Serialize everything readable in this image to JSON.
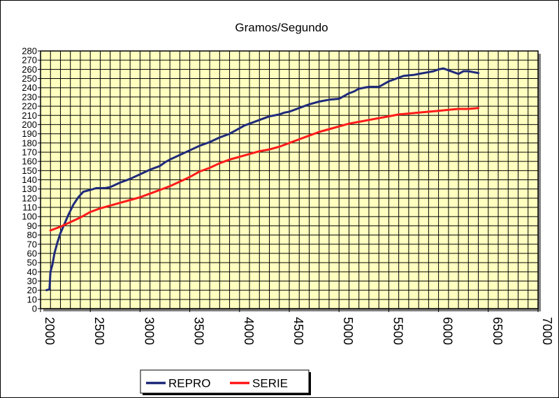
{
  "chart_data": {
    "type": "line",
    "title": "Gramos/Segundo",
    "xlabel": "",
    "ylabel": "",
    "xlim": [
      2000,
      7000
    ],
    "ylim": [
      0,
      280
    ],
    "x_ticks": [
      2000,
      2500,
      3000,
      3500,
      4000,
      4500,
      5000,
      5500,
      6000,
      6500,
      7000
    ],
    "y_ticks": [
      0,
      10,
      20,
      30,
      40,
      50,
      60,
      70,
      80,
      90,
      100,
      110,
      120,
      130,
      140,
      150,
      160,
      170,
      180,
      190,
      200,
      210,
      220,
      230,
      240,
      250,
      260,
      270,
      280
    ],
    "grid": true,
    "plot_background": "#FFFFC0",
    "legend_position": "bottom",
    "series": [
      {
        "name": "REPRO",
        "color": "#1F2A7A",
        "points": [
          [
            2060,
            20
          ],
          [
            2090,
            21
          ],
          [
            2100,
            40
          ],
          [
            2120,
            48
          ],
          [
            2140,
            60
          ],
          [
            2170,
            72
          ],
          [
            2200,
            82
          ],
          [
            2240,
            92
          ],
          [
            2280,
            102
          ],
          [
            2330,
            113
          ],
          [
            2380,
            121
          ],
          [
            2430,
            127
          ],
          [
            2500,
            129
          ],
          [
            2560,
            131
          ],
          [
            2650,
            131
          ],
          [
            2700,
            132
          ],
          [
            2800,
            137
          ],
          [
            2900,
            141
          ],
          [
            3000,
            146
          ],
          [
            3100,
            151
          ],
          [
            3200,
            155
          ],
          [
            3250,
            159
          ],
          [
            3300,
            162
          ],
          [
            3400,
            167
          ],
          [
            3500,
            172
          ],
          [
            3600,
            177
          ],
          [
            3700,
            181
          ],
          [
            3800,
            186
          ],
          [
            3900,
            190
          ],
          [
            4000,
            196
          ],
          [
            4050,
            199
          ],
          [
            4100,
            201
          ],
          [
            4200,
            205
          ],
          [
            4300,
            209
          ],
          [
            4400,
            211
          ],
          [
            4450,
            213
          ],
          [
            4500,
            214
          ],
          [
            4600,
            218
          ],
          [
            4700,
            222
          ],
          [
            4800,
            225
          ],
          [
            4900,
            227
          ],
          [
            5000,
            228
          ],
          [
            5050,
            231
          ],
          [
            5100,
            234
          ],
          [
            5150,
            236
          ],
          [
            5200,
            239
          ],
          [
            5300,
            241
          ],
          [
            5400,
            241
          ],
          [
            5450,
            244
          ],
          [
            5500,
            247
          ],
          [
            5550,
            249
          ],
          [
            5600,
            251
          ],
          [
            5650,
            253
          ],
          [
            5750,
            254
          ],
          [
            5800,
            255
          ],
          [
            5900,
            257
          ],
          [
            5950,
            258
          ],
          [
            6000,
            260
          ],
          [
            6050,
            261
          ],
          [
            6100,
            259
          ],
          [
            6150,
            257
          ],
          [
            6200,
            255
          ],
          [
            6250,
            258
          ],
          [
            6300,
            258
          ],
          [
            6350,
            257
          ],
          [
            6400,
            256
          ]
        ]
      },
      {
        "name": "SERIE",
        "color": "#FF1A1A",
        "points": [
          [
            2100,
            85
          ],
          [
            2200,
            89
          ],
          [
            2300,
            94
          ],
          [
            2400,
            99
          ],
          [
            2500,
            105
          ],
          [
            2600,
            109
          ],
          [
            2700,
            112
          ],
          [
            2800,
            115
          ],
          [
            2900,
            118
          ],
          [
            3000,
            121
          ],
          [
            3100,
            125
          ],
          [
            3200,
            129
          ],
          [
            3300,
            133
          ],
          [
            3400,
            138
          ],
          [
            3500,
            143
          ],
          [
            3600,
            149
          ],
          [
            3700,
            153
          ],
          [
            3800,
            158
          ],
          [
            3900,
            162
          ],
          [
            4000,
            165
          ],
          [
            4100,
            168
          ],
          [
            4200,
            171
          ],
          [
            4300,
            173
          ],
          [
            4400,
            176
          ],
          [
            4500,
            180
          ],
          [
            4600,
            184
          ],
          [
            4700,
            188
          ],
          [
            4800,
            192
          ],
          [
            4900,
            195
          ],
          [
            5000,
            198
          ],
          [
            5100,
            201
          ],
          [
            5200,
            203
          ],
          [
            5300,
            205
          ],
          [
            5400,
            207
          ],
          [
            5500,
            209
          ],
          [
            5600,
            211
          ],
          [
            5700,
            212
          ],
          [
            5800,
            213
          ],
          [
            5900,
            214
          ],
          [
            6000,
            215
          ],
          [
            6100,
            216
          ],
          [
            6200,
            217
          ],
          [
            6300,
            217
          ],
          [
            6400,
            218
          ]
        ]
      }
    ]
  }
}
